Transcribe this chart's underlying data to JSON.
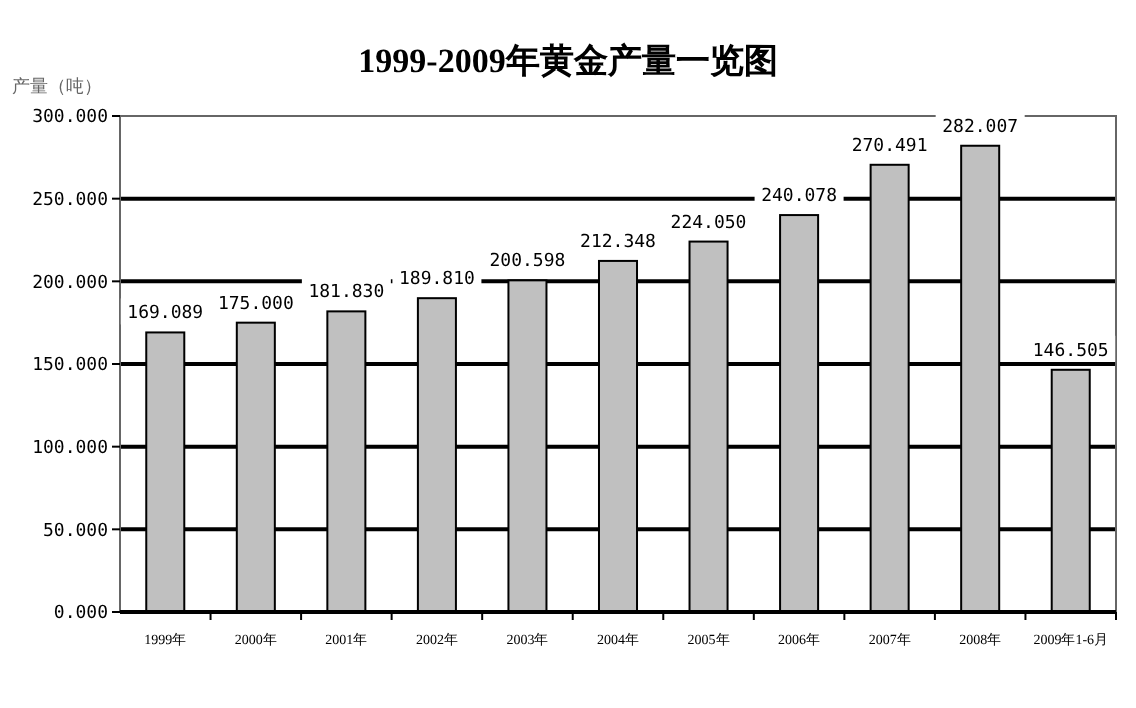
{
  "chart_data": {
    "type": "bar",
    "title": "1999-2009年黄金产量一览图",
    "ylabel": "产量（吨）",
    "categories": [
      "1999年",
      "2000年",
      "2001年",
      "2002年",
      "2003年",
      "2004年",
      "2005年",
      "2006年",
      "2007年",
      "2008年",
      "2009年1-6月"
    ],
    "values": [
      169.089,
      175.0,
      181.83,
      189.81,
      200.598,
      212.348,
      224.05,
      240.078,
      270.491,
      282.007,
      146.505
    ],
    "value_labels": [
      "169.089",
      "175.000",
      "181.830",
      "189.810",
      "200.598",
      "212.348",
      "224.050",
      "240.078",
      "270.491",
      "282.007",
      "146.505"
    ],
    "color": "#c0c0c0",
    "ylim": [
      0,
      300
    ],
    "yticks": [
      {
        "value": 0,
        "label": "0.000"
      },
      {
        "value": 50,
        "label": "50.000"
      },
      {
        "value": 100,
        "label": "100.000"
      },
      {
        "value": 150,
        "label": "150.000"
      },
      {
        "value": 200,
        "label": "200.000"
      },
      {
        "value": 250,
        "label": "250.000"
      },
      {
        "value": 300,
        "label": "300.000"
      }
    ],
    "grid": "y"
  }
}
